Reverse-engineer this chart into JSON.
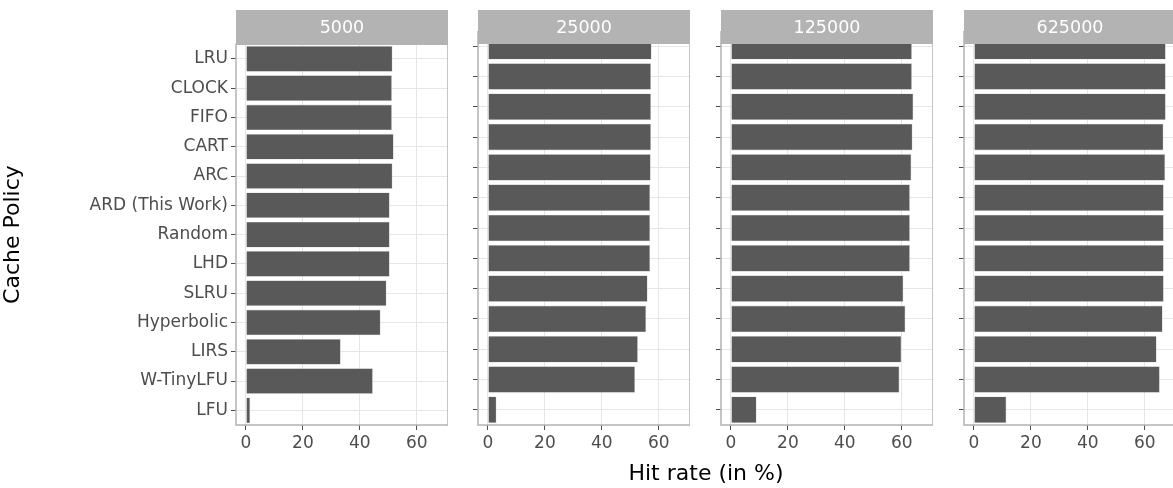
{
  "chart_data": [
    {
      "type": "bar",
      "orientation": "horizontal",
      "title": "5000",
      "ylabel": "Cache Policy",
      "categories": [
        "LRU",
        "CLOCK",
        "FIFO",
        "CART",
        "ARC",
        "ARD (This Work)",
        "Random",
        "LHD",
        "SLRU",
        "Hyperbolic",
        "LIRS",
        "W-TinyLFU",
        "LFU"
      ],
      "values": [
        51.5,
        51.3,
        51.3,
        51.9,
        51.5,
        50.5,
        50.5,
        50.5,
        49.4,
        47.3,
        33.3,
        44.6,
        1.5
      ],
      "color": "#595959",
      "xlim": [
        -3.5,
        71
      ],
      "xticks": [
        0,
        20,
        40,
        60
      ],
      "grid": true
    },
    {
      "type": "bar",
      "orientation": "horizontal",
      "title": "25000",
      "xlabel": "Hit rate (in %)",
      "values": [
        57.5,
        57.3,
        57.3,
        57.3,
        57.2,
        57.0,
        57.0,
        57.0,
        56.1,
        55.6,
        52.7,
        51.7,
        3.0
      ],
      "color": "#595959",
      "xlim": [
        -3.5,
        71
      ],
      "xticks": [
        0,
        20,
        40,
        60
      ],
      "grid": true,
      "tick_labels": "x"
    },
    {
      "type": "bar",
      "orientation": "horizontal",
      "title": "125000",
      "values": [
        63.6,
        63.6,
        64.1,
        63.8,
        63.4,
        62.9,
        62.9,
        62.9,
        60.6,
        61.3,
        59.9,
        59.2,
        9.0
      ],
      "color": "#595959",
      "xlim": [
        -3.5,
        71
      ],
      "xticks": [
        0,
        20,
        40,
        60
      ],
      "grid": true,
      "tick_labels": "x"
    },
    {
      "type": "bar",
      "orientation": "horizontal",
      "title": "625000",
      "values": [
        67.4,
        67.4,
        67.4,
        66.6,
        67.2,
        66.7,
        66.7,
        66.7,
        66.7,
        66.3,
        64.2,
        65.3,
        11.4
      ],
      "color": "#595959",
      "xlim": [
        -3.5,
        71
      ],
      "xticks": [
        0,
        20,
        40,
        60
      ],
      "grid": true,
      "tick_labels": "x"
    }
  ]
}
